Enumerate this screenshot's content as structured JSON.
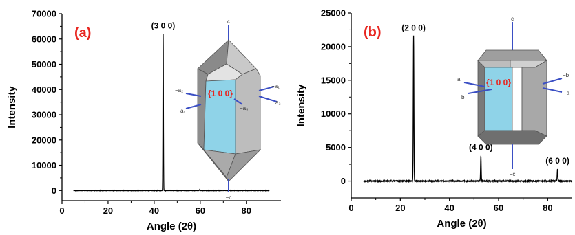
{
  "colors": {
    "panel_letter": "#e8251f",
    "face_label": "#e8251f",
    "face_fill": "#8fd3e8",
    "axis_line": "#3b4fc4",
    "data_line": "#000000"
  },
  "chart_data": [
    {
      "type": "line",
      "panel": "(a)",
      "xlabel": "Angle (2θ)",
      "ylabel": "Intensity",
      "xlim": [
        0,
        95
      ],
      "ylim": [
        -4000,
        70000
      ],
      "xticks": [
        0,
        20,
        40,
        60,
        80
      ],
      "yticks": [
        0,
        10000,
        20000,
        30000,
        40000,
        50000,
        60000,
        70000
      ],
      "ytick_labels": [
        "0",
        "10000",
        "20000",
        "30000",
        "40000",
        "50000",
        "60000",
        "70000"
      ],
      "data_range": [
        5,
        90
      ],
      "baseline": 0,
      "noise": 60,
      "peaks": [
        {
          "x": 43.9,
          "y": 62000,
          "width": 0.25
        },
        {
          "x": 59.8,
          "y": 400,
          "width": 0.3
        }
      ],
      "peak_labels": [
        {
          "text": "(3 0 0)",
          "x": 43.9,
          "y": 62000
        }
      ],
      "inset": {
        "face_label": "{1 0 0}",
        "top_axis": "c",
        "bottom_axis": "−c",
        "left_labels": [
          "−a₂",
          "a₁"
        ],
        "right_labels": [
          "−a₁",
          "a₂",
          "−a₃"
        ]
      }
    },
    {
      "type": "line",
      "panel": "(b)",
      "xlabel": "Angle (2θ)",
      "ylabel": "Intensity",
      "xlim": [
        0,
        90
      ],
      "ylim": [
        -2500,
        25000
      ],
      "xticks": [
        0,
        20,
        40,
        60,
        80
      ],
      "yticks": [
        0,
        5000,
        10000,
        15000,
        20000,
        25000
      ],
      "ytick_labels": [
        "0",
        "5000",
        "10000",
        "15000",
        "20000",
        "25000"
      ],
      "data_range": [
        5,
        90
      ],
      "baseline": 0,
      "noise": 60,
      "peaks": [
        {
          "x": 25.4,
          "y": 21600,
          "width": 0.3
        },
        {
          "x": 52.8,
          "y": 3800,
          "width": 0.3
        },
        {
          "x": 84.0,
          "y": 1800,
          "width": 0.3
        }
      ],
      "peak_labels": [
        {
          "text": "(2 0 0)",
          "x": 25.4,
          "y": 21600
        },
        {
          "text": "(4 0 0)",
          "x": 52.8,
          "y": 3800
        },
        {
          "text": "(6 0 0)",
          "x": 84.0,
          "y": 1800
        }
      ],
      "inset": {
        "face_label": "{1 0 0}",
        "top_axis": "c",
        "bottom_axis": "−c",
        "left_labels": [
          "a",
          "b"
        ],
        "right_labels": [
          "−b",
          "−a"
        ]
      }
    }
  ]
}
